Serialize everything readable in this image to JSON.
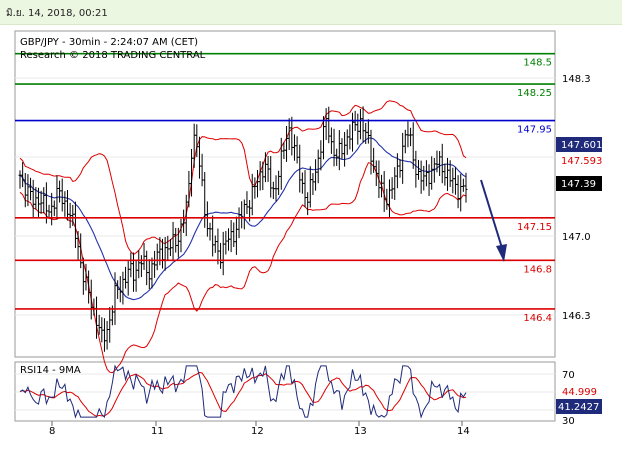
{
  "date_stamp": "มิ.ย. 14, 2018, 00:21",
  "chart_data": {
    "type": "candlestick",
    "title": "GBP/JPY - 30min - 2:24:07 AM (CET)",
    "subtitle": "Research © 2018 TRADING CENTRAL",
    "price_axis": {
      "ylim": [
        146.0,
        148.6
      ],
      "ticks": [
        "148.3",
        "147.0",
        "146.3"
      ]
    },
    "x_ticks": [
      "8",
      "11",
      "12",
      "13",
      "14"
    ],
    "levels": [
      {
        "value": 148.5,
        "label": "148.5",
        "color": "#008000"
      },
      {
        "value": 148.25,
        "label": "148.25",
        "color": "#008000"
      },
      {
        "value": 147.95,
        "label": "147.95",
        "color": "#0000cc"
      },
      {
        "value": 147.15,
        "label": "147.15",
        "color": "#dd0000"
      },
      {
        "value": 146.8,
        "label": "146.8",
        "color": "#dd0000"
      },
      {
        "value": 146.4,
        "label": "146.4",
        "color": "#dd0000"
      }
    ],
    "price_tags": [
      {
        "value": 147.601,
        "label": "147.601",
        "color": "#1f2a7a"
      },
      {
        "value": 147.593,
        "label": "147.593",
        "color": "#dd0000"
      },
      {
        "value": 147.39,
        "label": "147.39",
        "color": "#000000"
      }
    ],
    "rsi": {
      "title": "RSI14 - 9MA",
      "ylim": [
        20,
        80
      ],
      "ticks": [
        "70",
        "30"
      ],
      "tags": [
        {
          "value": 44.999,
          "label": "44.999",
          "color": "#dd0000"
        },
        {
          "value": 41.2427,
          "label": "41.2427",
          "color": "#1f2a7a"
        }
      ]
    },
    "close_path": [
      147.5,
      147.42,
      147.33,
      147.28,
      147.32,
      147.25,
      147.2,
      147.28,
      147.35,
      147.3,
      147.22,
      147.1,
      146.95,
      146.7,
      146.55,
      146.45,
      146.3,
      146.15,
      146.22,
      146.35,
      146.55,
      146.6,
      146.65,
      146.72,
      146.7,
      146.8,
      146.75,
      146.7,
      146.78,
      146.85,
      146.9,
      146.88,
      146.95,
      147.0,
      147.1,
      147.3,
      147.85,
      147.7,
      147.4,
      147.1,
      146.95,
      146.9,
      146.85,
      146.95,
      147.0,
      147.05,
      147.15,
      147.25,
      147.3,
      147.4,
      147.5,
      147.6,
      147.45,
      147.35,
      147.55,
      147.7,
      147.9,
      147.75,
      147.55,
      147.4,
      147.3,
      147.45,
      147.6,
      147.8,
      147.95,
      147.75,
      147.65,
      147.7,
      147.8,
      147.85,
      147.9,
      147.95,
      147.85,
      147.7,
      147.55,
      147.4,
      147.3,
      147.35,
      147.45,
      147.55,
      147.8,
      147.85,
      147.65,
      147.5,
      147.45,
      147.5,
      147.55,
      147.6,
      147.58,
      147.5,
      147.45,
      147.4,
      147.38,
      147.39
    ]
  }
}
